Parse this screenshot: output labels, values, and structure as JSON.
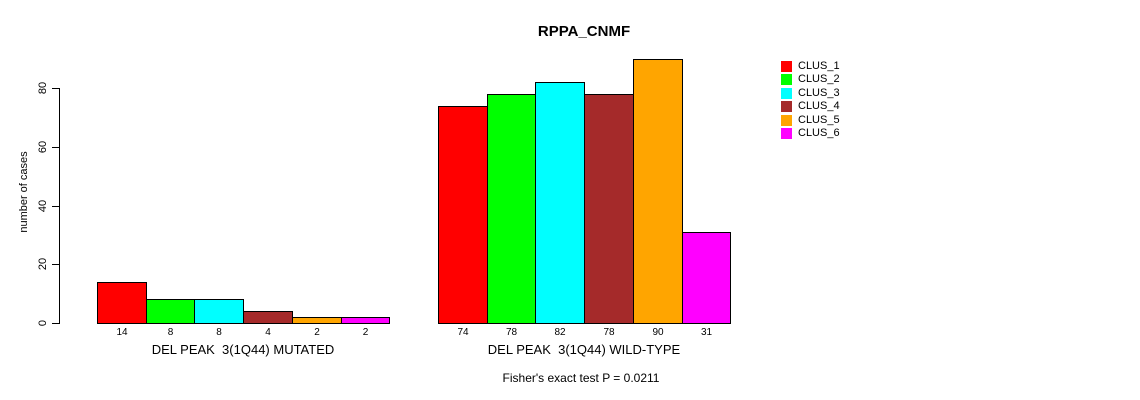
{
  "title": "RPPA_CNMF",
  "chart_data": {
    "type": "bar",
    "title": "RPPA_CNMF",
    "ylabel": "number of cases",
    "xlabel": "",
    "ylim": [
      0,
      90
    ],
    "yticks": [
      0,
      20,
      40,
      60,
      80
    ],
    "grid": false,
    "legend_position": "top-right",
    "bar_value_labels_shown": true,
    "categories": [
      "DEL PEAK  3(1Q44) MUTATED",
      "DEL PEAK  3(1Q44) WILD-TYPE"
    ],
    "series": [
      {
        "name": "CLUS_1",
        "color": "#ff0000",
        "values": [
          14,
          74
        ]
      },
      {
        "name": "CLUS_2",
        "color": "#00ff00",
        "values": [
          8,
          78
        ]
      },
      {
        "name": "CLUS_3",
        "color": "#00ffff",
        "values": [
          8,
          82
        ]
      },
      {
        "name": "CLUS_4",
        "color": "#a52a2a",
        "values": [
          4,
          78
        ]
      },
      {
        "name": "CLUS_5",
        "color": "#ffa500",
        "values": [
          2,
          90
        ]
      },
      {
        "name": "CLUS_6",
        "color": "#ff00ff",
        "values": [
          2,
          31
        ]
      }
    ],
    "annotation": "Fisher's exact test P = 0.0211"
  }
}
